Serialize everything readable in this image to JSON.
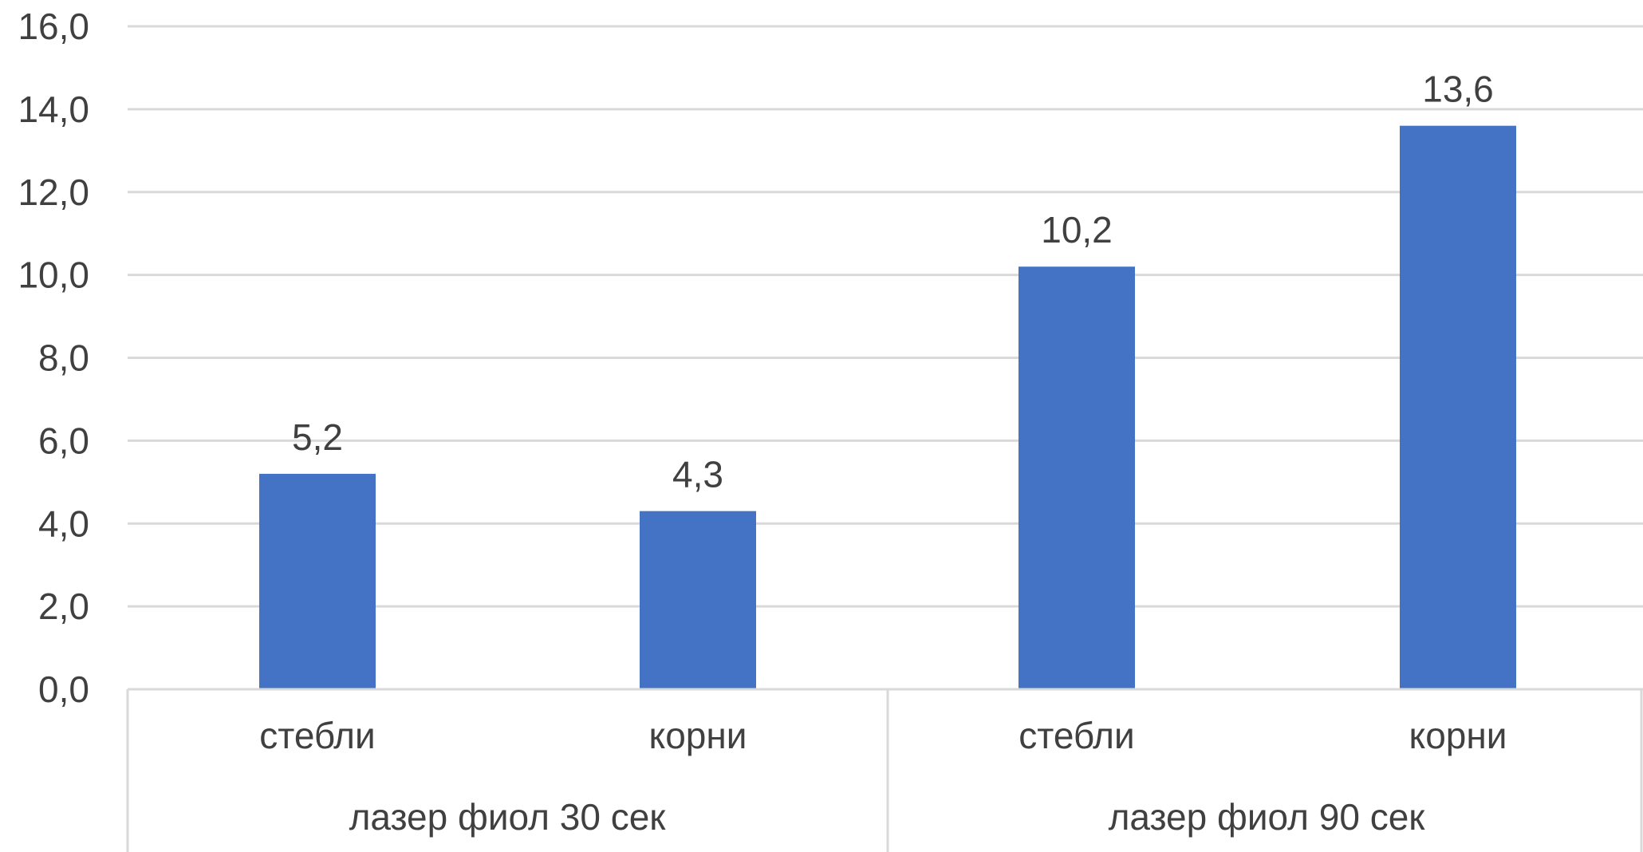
{
  "chart_data": {
    "type": "bar",
    "groups": [
      {
        "label": "лазер фиол 30 сек",
        "categories": [
          "стебли",
          "корни"
        ],
        "values": [
          5.2,
          4.3
        ]
      },
      {
        "label": "лазер фиол 90 сек",
        "categories": [
          "стебли",
          "корни"
        ],
        "values": [
          10.2,
          13.6
        ]
      }
    ],
    "value_labels": [
      "5,2",
      "4,3",
      "10,2",
      "13,6"
    ],
    "y_ticks": [
      "0,0",
      "2,0",
      "4,0",
      "6,0",
      "8,0",
      "10,0",
      "12,0",
      "14,0",
      "16,0"
    ],
    "ylim": [
      0,
      16
    ],
    "title": "",
    "xlabel": "",
    "ylabel": "",
    "grid": true,
    "legend": "none",
    "bar_color": "#4472c4"
  }
}
